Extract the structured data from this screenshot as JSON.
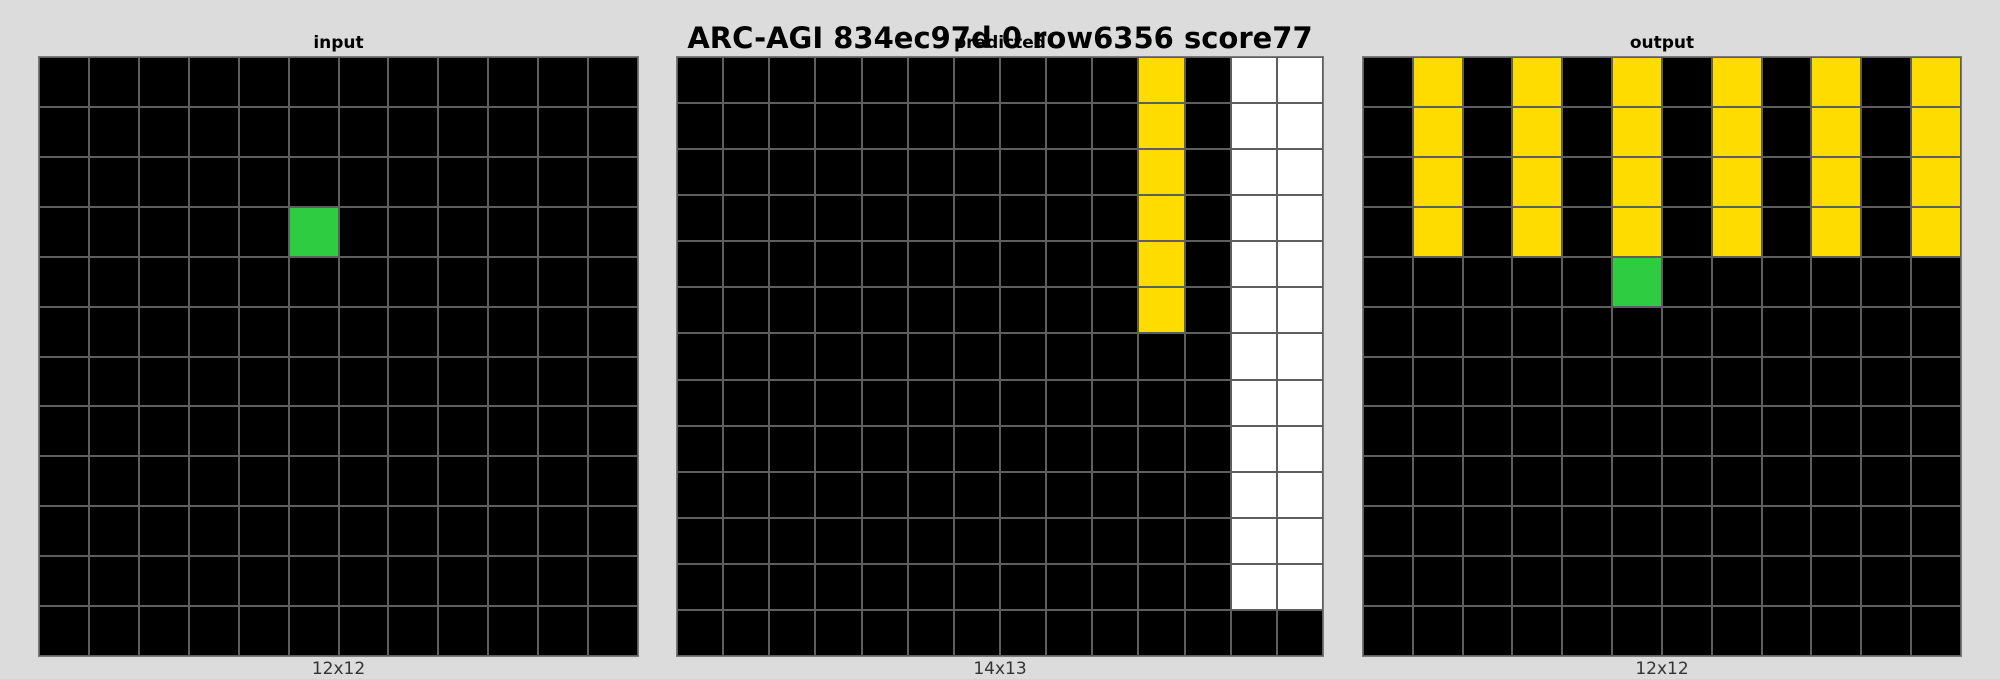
{
  "title": "ARC-AGI 834ec97d 0 row6356 score77",
  "colors": {
    "0": "#000000",
    "3": "#2ecc40",
    "4": "#ffdc00",
    "5": "#ffffff"
  },
  "panels": [
    {
      "key": "input",
      "label": "input",
      "size_label": "12x12",
      "rows": [
        [
          0,
          0,
          0,
          0,
          0,
          0,
          0,
          0,
          0,
          0,
          0,
          0
        ],
        [
          0,
          0,
          0,
          0,
          0,
          0,
          0,
          0,
          0,
          0,
          0,
          0
        ],
        [
          0,
          0,
          0,
          0,
          0,
          0,
          0,
          0,
          0,
          0,
          0,
          0
        ],
        [
          0,
          0,
          0,
          0,
          0,
          3,
          0,
          0,
          0,
          0,
          0,
          0
        ],
        [
          0,
          0,
          0,
          0,
          0,
          0,
          0,
          0,
          0,
          0,
          0,
          0
        ],
        [
          0,
          0,
          0,
          0,
          0,
          0,
          0,
          0,
          0,
          0,
          0,
          0
        ],
        [
          0,
          0,
          0,
          0,
          0,
          0,
          0,
          0,
          0,
          0,
          0,
          0
        ],
        [
          0,
          0,
          0,
          0,
          0,
          0,
          0,
          0,
          0,
          0,
          0,
          0
        ],
        [
          0,
          0,
          0,
          0,
          0,
          0,
          0,
          0,
          0,
          0,
          0,
          0
        ],
        [
          0,
          0,
          0,
          0,
          0,
          0,
          0,
          0,
          0,
          0,
          0,
          0
        ],
        [
          0,
          0,
          0,
          0,
          0,
          0,
          0,
          0,
          0,
          0,
          0,
          0
        ],
        [
          0,
          0,
          0,
          0,
          0,
          0,
          0,
          0,
          0,
          0,
          0,
          0
        ]
      ]
    },
    {
      "key": "predicted",
      "label": "predicted",
      "size_label": "14x13",
      "rows": [
        [
          0,
          0,
          0,
          0,
          0,
          0,
          0,
          0,
          0,
          0,
          4,
          0,
          5,
          5
        ],
        [
          0,
          0,
          0,
          0,
          0,
          0,
          0,
          0,
          0,
          0,
          4,
          0,
          5,
          5
        ],
        [
          0,
          0,
          0,
          0,
          0,
          0,
          0,
          0,
          0,
          0,
          4,
          0,
          5,
          5
        ],
        [
          0,
          0,
          0,
          0,
          0,
          0,
          0,
          0,
          0,
          0,
          4,
          0,
          5,
          5
        ],
        [
          0,
          0,
          0,
          0,
          0,
          0,
          0,
          0,
          0,
          0,
          4,
          0,
          5,
          5
        ],
        [
          0,
          0,
          0,
          0,
          0,
          0,
          0,
          0,
          0,
          0,
          4,
          0,
          5,
          5
        ],
        [
          0,
          0,
          0,
          0,
          0,
          0,
          0,
          0,
          0,
          0,
          0,
          0,
          5,
          5
        ],
        [
          0,
          0,
          0,
          0,
          0,
          0,
          0,
          0,
          0,
          0,
          0,
          0,
          5,
          5
        ],
        [
          0,
          0,
          0,
          0,
          0,
          0,
          0,
          0,
          0,
          0,
          0,
          0,
          5,
          5
        ],
        [
          0,
          0,
          0,
          0,
          0,
          0,
          0,
          0,
          0,
          0,
          0,
          0,
          5,
          5
        ],
        [
          0,
          0,
          0,
          0,
          0,
          0,
          0,
          0,
          0,
          0,
          0,
          0,
          5,
          5
        ],
        [
          0,
          0,
          0,
          0,
          0,
          0,
          0,
          0,
          0,
          0,
          0,
          0,
          5,
          5
        ],
        [
          0,
          0,
          0,
          0,
          0,
          0,
          0,
          0,
          0,
          0,
          0,
          0,
          0,
          0
        ]
      ]
    },
    {
      "key": "output",
      "label": "output",
      "size_label": "12x12",
      "rows": [
        [
          0,
          4,
          0,
          4,
          0,
          4,
          0,
          4,
          0,
          4,
          0,
          4
        ],
        [
          0,
          4,
          0,
          4,
          0,
          4,
          0,
          4,
          0,
          4,
          0,
          4
        ],
        [
          0,
          4,
          0,
          4,
          0,
          4,
          0,
          4,
          0,
          4,
          0,
          4
        ],
        [
          0,
          4,
          0,
          4,
          0,
          4,
          0,
          4,
          0,
          4,
          0,
          4
        ],
        [
          0,
          0,
          0,
          0,
          0,
          3,
          0,
          0,
          0,
          0,
          0,
          0
        ],
        [
          0,
          0,
          0,
          0,
          0,
          0,
          0,
          0,
          0,
          0,
          0,
          0
        ],
        [
          0,
          0,
          0,
          0,
          0,
          0,
          0,
          0,
          0,
          0,
          0,
          0
        ],
        [
          0,
          0,
          0,
          0,
          0,
          0,
          0,
          0,
          0,
          0,
          0,
          0
        ],
        [
          0,
          0,
          0,
          0,
          0,
          0,
          0,
          0,
          0,
          0,
          0,
          0
        ],
        [
          0,
          0,
          0,
          0,
          0,
          0,
          0,
          0,
          0,
          0,
          0,
          0
        ],
        [
          0,
          0,
          0,
          0,
          0,
          0,
          0,
          0,
          0,
          0,
          0,
          0
        ],
        [
          0,
          0,
          0,
          0,
          0,
          0,
          0,
          0,
          0,
          0,
          0,
          0
        ]
      ]
    }
  ]
}
